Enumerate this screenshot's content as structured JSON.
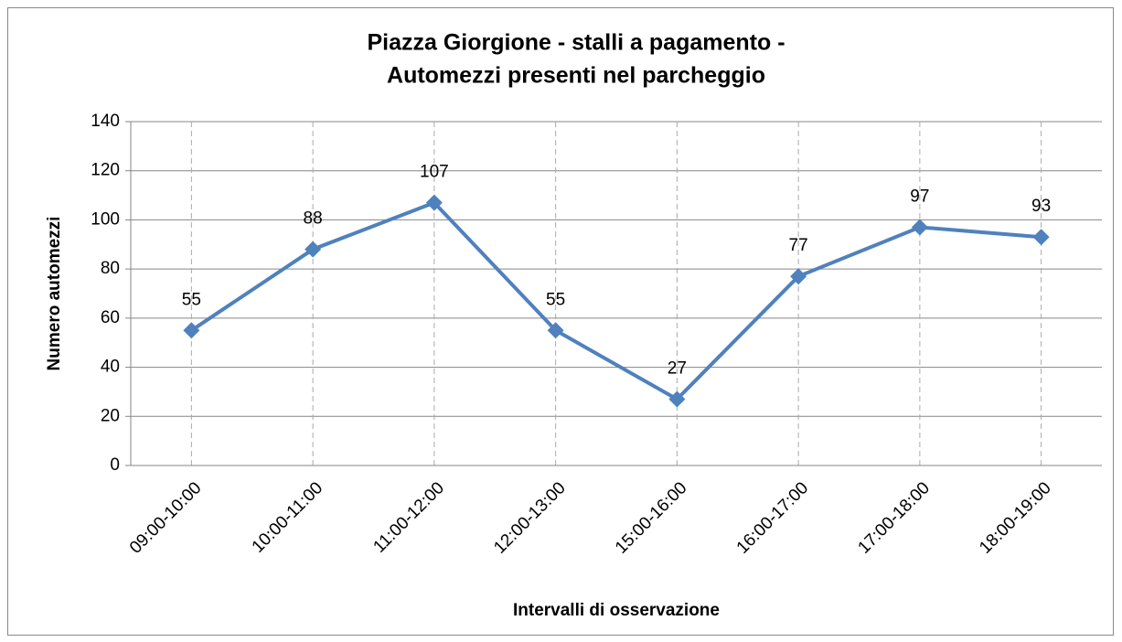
{
  "chart_data": {
    "type": "line",
    "title": [
      "Piazza Giorgione  - stalli a pagamento -",
      "Automezzi presenti nel parcheggio"
    ],
    "x_label": "Intervalli di osservazione",
    "y_label": "Numero automezzi",
    "categories": [
      "09:00-10:00",
      "10:00-11:00",
      "11:00-12:00",
      "12:00-13:00",
      "15:00-16:00",
      "16:00-17:00",
      "17:00-18:00",
      "18:00-19:00"
    ],
    "series": [
      {
        "name": "Automezzi",
        "color": "#4f81bd",
        "values": [
          55,
          88,
          107,
          55,
          27,
          77,
          97,
          93
        ]
      }
    ],
    "ylim": [
      0,
      140
    ],
    "yticks": [
      0,
      20,
      40,
      60,
      80,
      100,
      120,
      140
    ],
    "grid": true
  }
}
